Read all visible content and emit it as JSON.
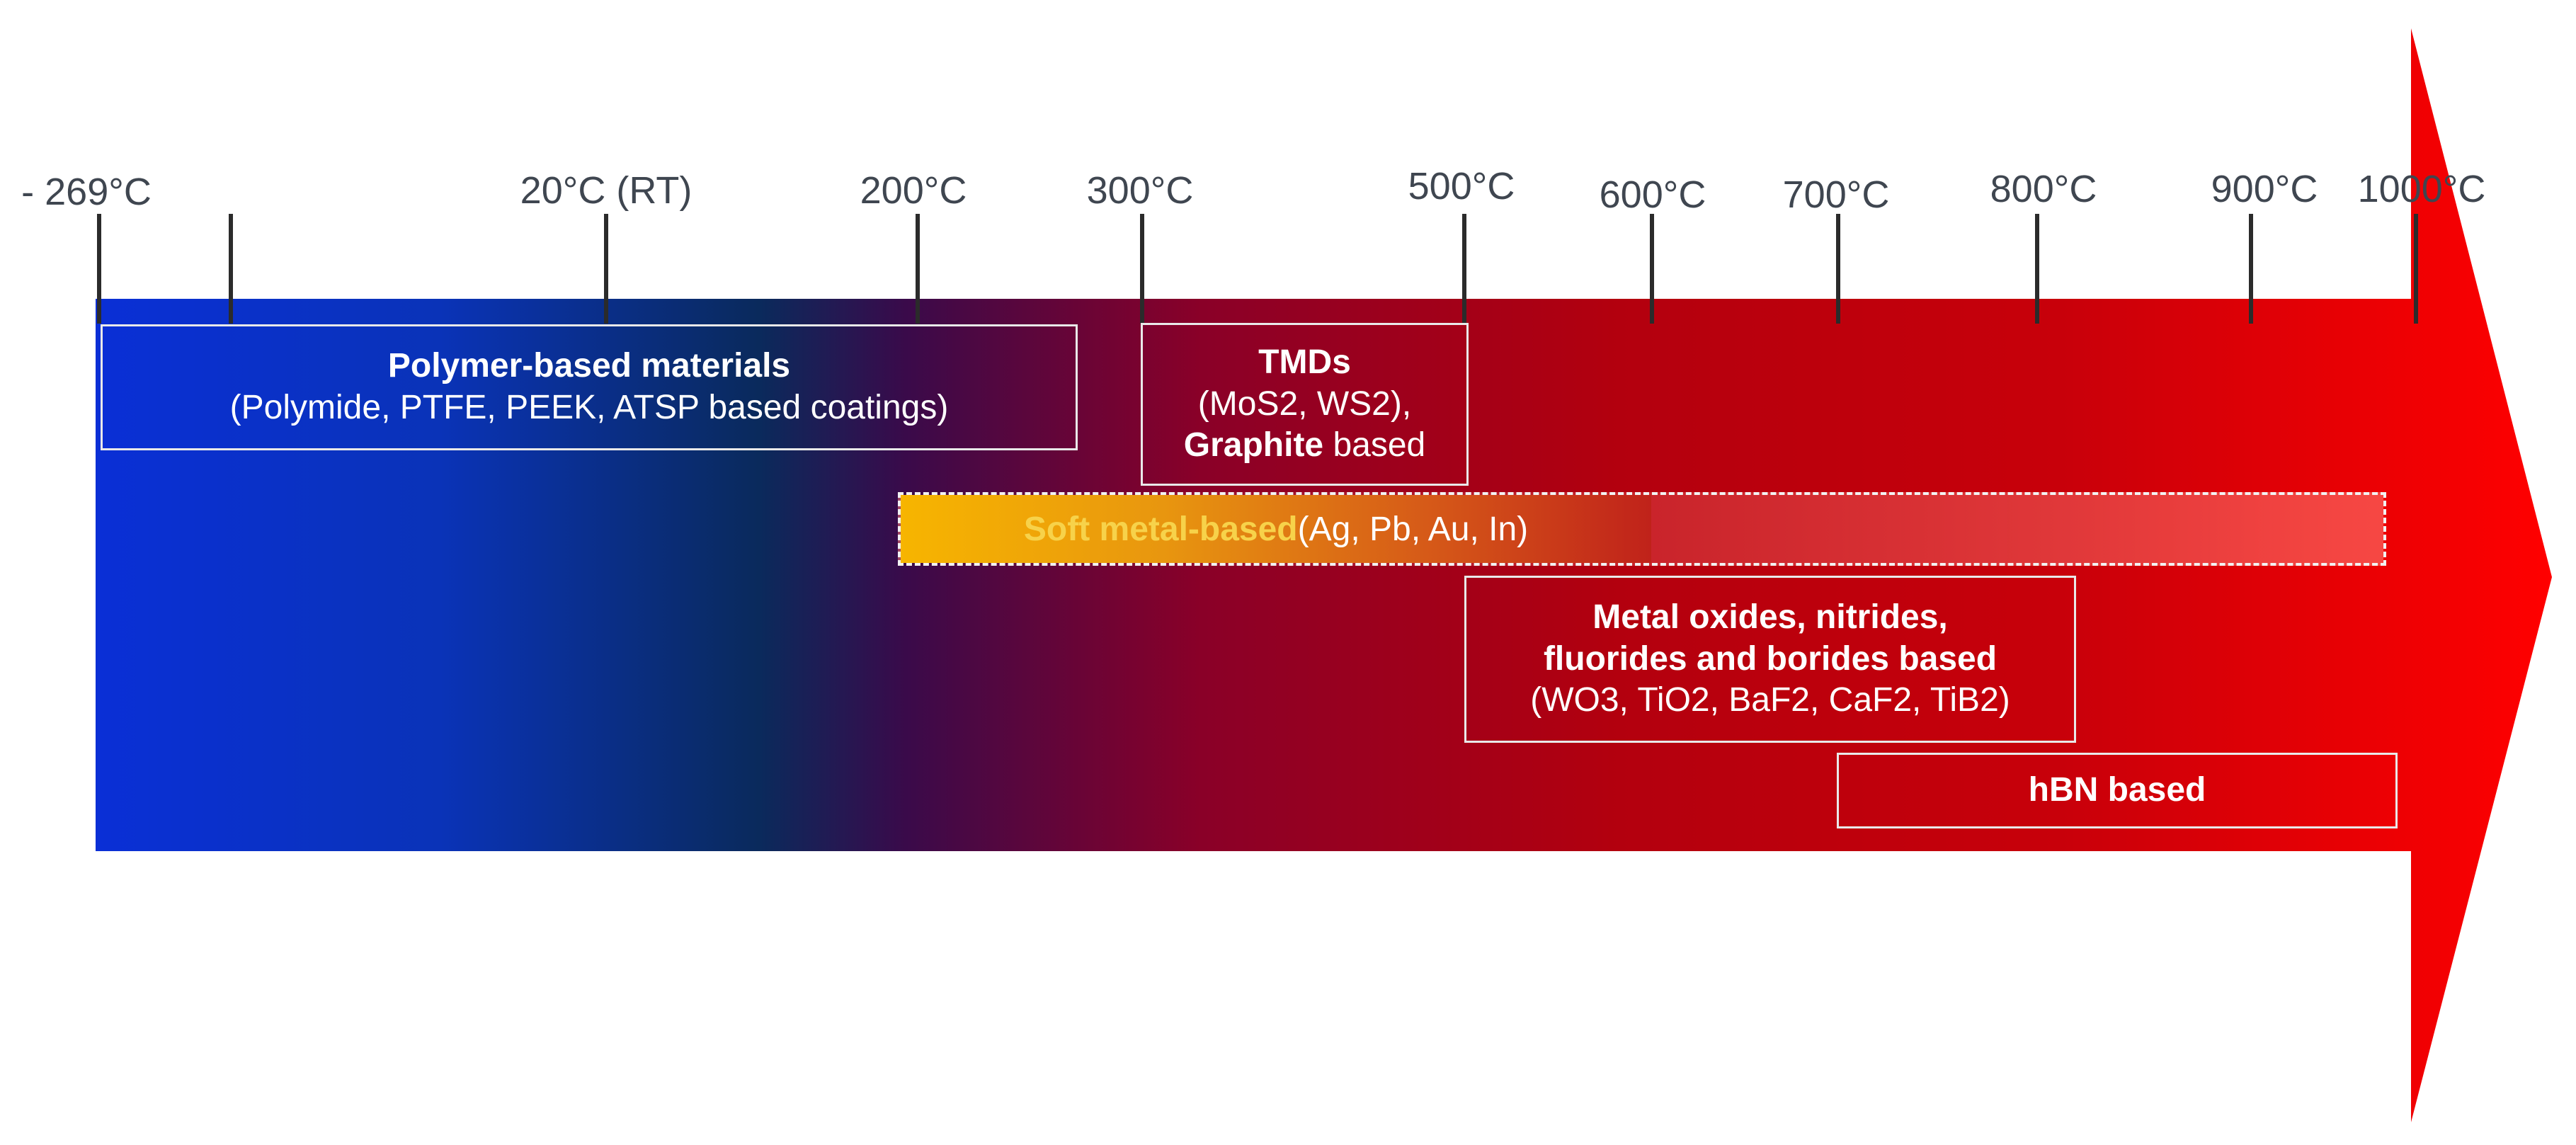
{
  "ticks": [
    {
      "label": "- 269°C"
    },
    {
      "label": ""
    },
    {
      "label": "20°C (RT)"
    },
    {
      "label": "200°C"
    },
    {
      "label": "300°C"
    },
    {
      "label": "500°C"
    },
    {
      "label": "600°C"
    },
    {
      "label": "700°C"
    },
    {
      "label": "800°C"
    },
    {
      "label": "900°C"
    },
    {
      "label": "1000°C"
    }
  ],
  "boxes": {
    "polymer": {
      "title": "Polymer-based materials",
      "detail": "(Polymide, PTFE, PEEK, ATSP based coatings)"
    },
    "tmds": {
      "title": "TMDs",
      "detail": "(MoS2, WS2),",
      "graphite": "Graphite",
      "graphite_suffix": " based"
    },
    "soft_metal": {
      "title": "Soft metal-based",
      "detail": " (Ag, Pb, Au, In)"
    },
    "oxides": {
      "line1": "Metal oxides, nitrides,",
      "line2": "fluorides and borides based",
      "detail": "(WO3, TiO2, BaF2, CaF2, TiB2)"
    },
    "hbn": {
      "title": "hBN based"
    }
  },
  "colors": {
    "cold": "#0a2fd6",
    "navy": "#0a2a5c",
    "mid": "#7a0030",
    "hot": "#c20008",
    "tip": "#ff0000"
  }
}
